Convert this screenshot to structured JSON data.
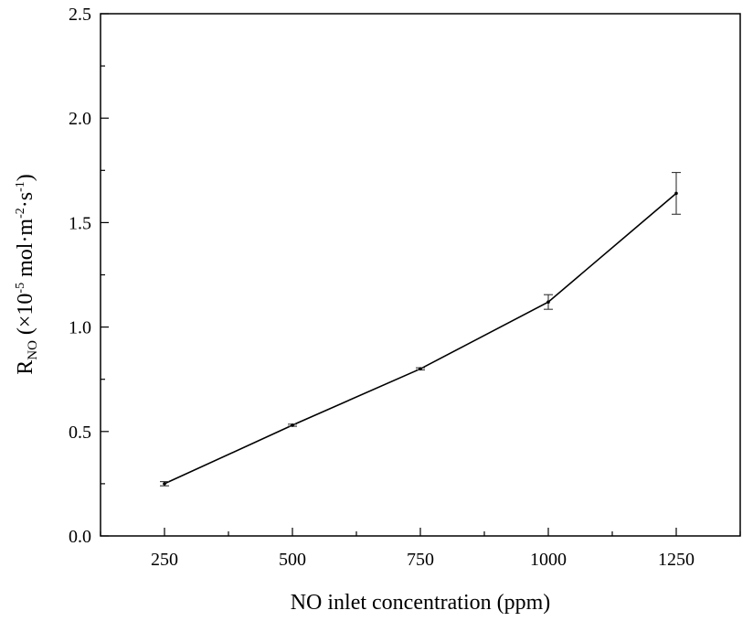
{
  "chart_data": {
    "type": "line",
    "xlabel": "NO inlet concentration (ppm)",
    "ylabel": {
      "main": "R",
      "sub": "NO",
      "open": " (×10",
      "exp": "-5",
      "unit_a": " mol·m",
      "exp2": "-2",
      "unit_b": "·s",
      "exp3": "-1",
      "close": ")"
    },
    "xlim": [
      125,
      1375
    ],
    "ylim": [
      0,
      2.5
    ],
    "xticks": [
      250,
      500,
      750,
      1000,
      1250
    ],
    "xtick_labels": [
      "250",
      "500",
      "750",
      "1000",
      "1250"
    ],
    "yticks": [
      0,
      0.5,
      1.0,
      1.5,
      2.0,
      2.5
    ],
    "ytick_labels": [
      "0.0",
      "0.5",
      "1.0",
      "1.5",
      "2.0",
      "2.5"
    ],
    "grid": false,
    "series": [
      {
        "x": [
          250,
          500,
          750,
          1000,
          1250
        ],
        "y": [
          0.25,
          0.53,
          0.8,
          1.12,
          1.64
        ],
        "error": [
          0.01,
          0.005,
          0.005,
          0.035,
          0.1
        ]
      }
    ]
  }
}
